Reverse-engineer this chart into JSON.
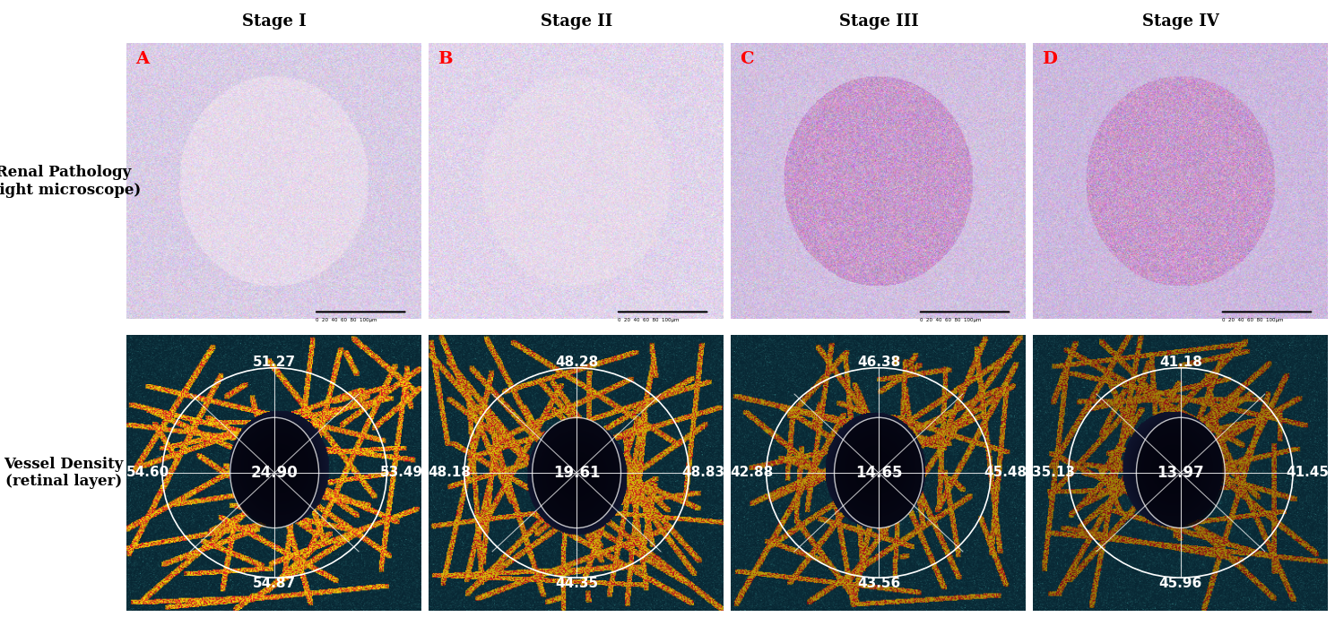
{
  "stages": [
    "Stage I",
    "Stage II",
    "Stage III",
    "Stage IV"
  ],
  "panel_labels": [
    "A",
    "B",
    "C",
    "D"
  ],
  "row_labels": [
    "Renal Pathology\n(light microscope)",
    "Vessel Density\n(retinal layer)"
  ],
  "vessel_data": [
    {
      "top": "54.87",
      "left": "54.60",
      "center": "24.90",
      "right": "53.49",
      "bottom": "51.27"
    },
    {
      "top": "44.35",
      "left": "48.18",
      "center": "19.61",
      "right": "48.83",
      "bottom": "48.28"
    },
    {
      "top": "43.56",
      "left": "42.88",
      "center": "14.65",
      "right": "45.48",
      "bottom": "46.38"
    },
    {
      "top": "45.96",
      "left": "35.13",
      "center": "13.97",
      "right": "41.45",
      "bottom": "41.18"
    }
  ],
  "background_color": "#ffffff",
  "row_label_color": "#000000",
  "stage_label_color": "#000000",
  "panel_label_color": "#ff0000",
  "vessel_text_color": "#ffffff",
  "stage_fontsize": 13,
  "row_label_fontsize": 12,
  "panel_label_fontsize": 14,
  "vessel_fontsize": 11
}
